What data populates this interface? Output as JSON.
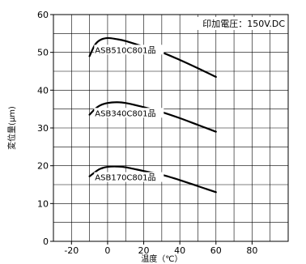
{
  "chart_data": {
    "type": "line",
    "xlabel": "温度（℃）",
    "ylabel": "変位量(μm)",
    "annotation": "印加電圧：150V.DC",
    "xlim": [
      -30,
      100
    ],
    "ylim": [
      0,
      60
    ],
    "x_ticks": [
      -20,
      0,
      20,
      40,
      60,
      80
    ],
    "y_ticks": [
      0,
      10,
      20,
      30,
      40,
      50,
      60
    ],
    "x_grid_step": 10,
    "y_grid_step": 5,
    "grid": true,
    "series": [
      {
        "name": "ASB510C801品",
        "x": [
          -10,
          -7,
          -4,
          0,
          5,
          10,
          20,
          30,
          40,
          50,
          60
        ],
        "y": [
          49,
          52,
          53.3,
          53.8,
          53.5,
          53,
          51.5,
          50,
          48,
          45.8,
          43.5
        ]
      },
      {
        "name": "ASB340C801品",
        "x": [
          -10,
          -7,
          -4,
          0,
          5,
          10,
          20,
          30,
          40,
          50,
          60
        ],
        "y": [
          33.5,
          35,
          36,
          36.6,
          36.8,
          36.6,
          35.5,
          34.2,
          32.6,
          30.8,
          29
        ]
      },
      {
        "name": "ASB170C801品",
        "x": [
          -10,
          -7,
          -4,
          0,
          5,
          10,
          20,
          30,
          40,
          50,
          60
        ],
        "y": [
          17.2,
          18.3,
          19.2,
          19.7,
          19.8,
          19.6,
          18.6,
          17.6,
          16.2,
          14.6,
          13
        ]
      }
    ]
  }
}
